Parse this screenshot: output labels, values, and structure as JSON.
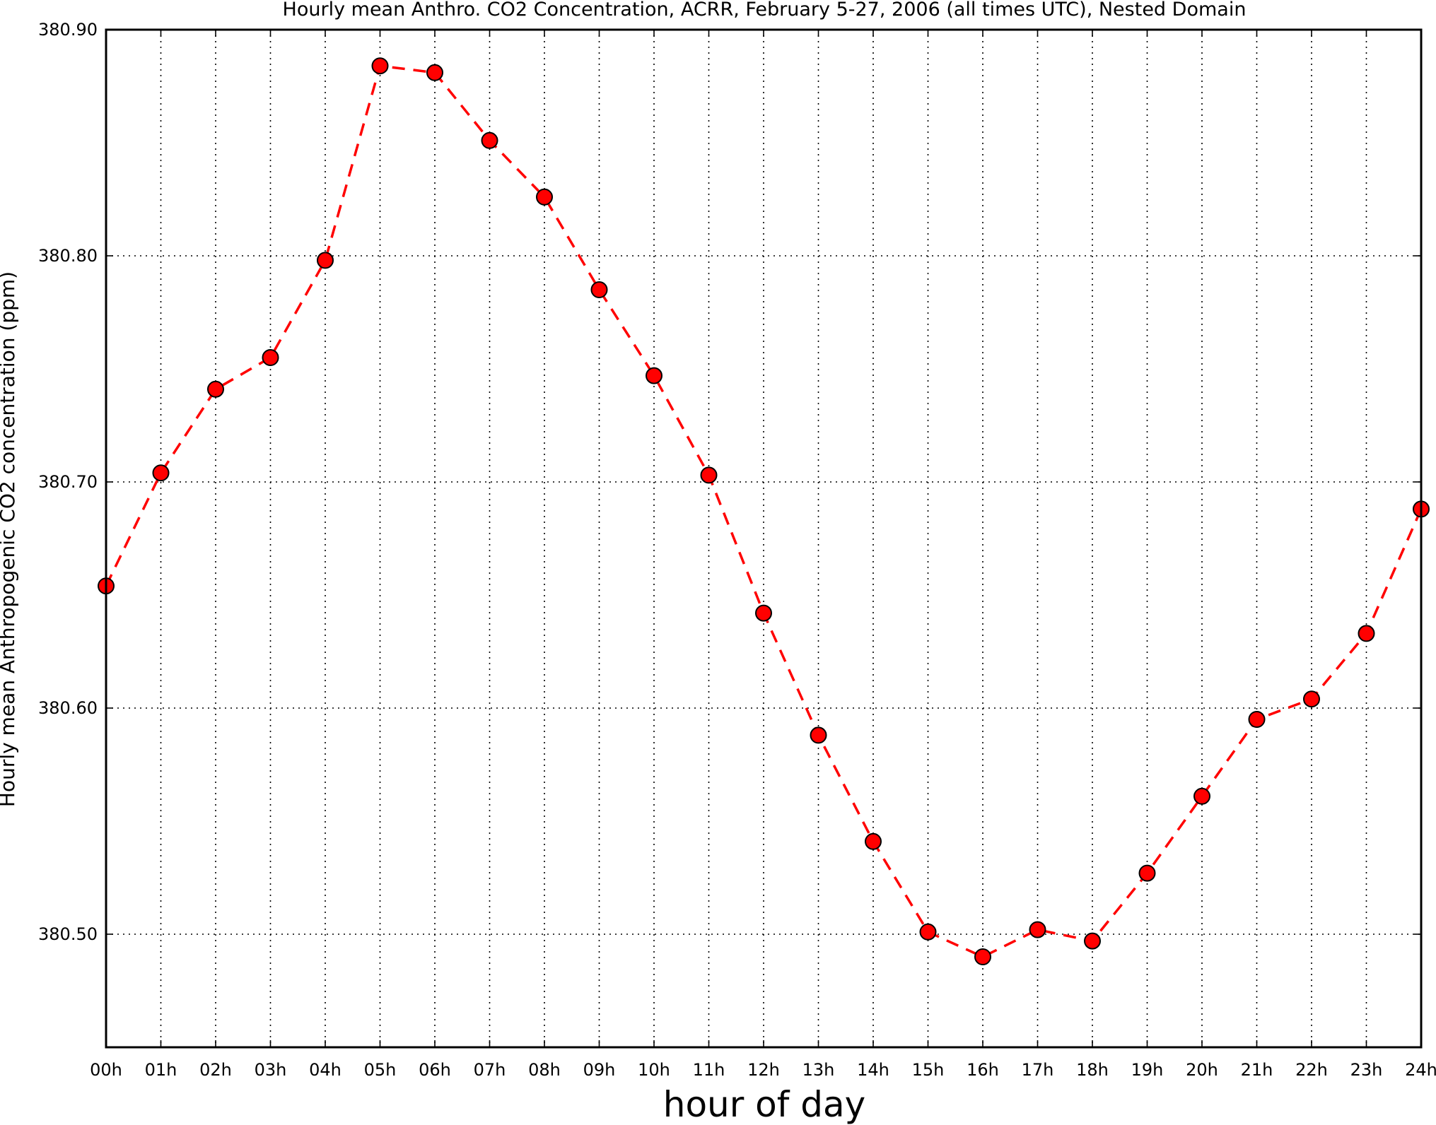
{
  "chart_data": {
    "type": "line",
    "title": "Hourly mean Anthro. CO2 Concentration, ACRR, February 5-27, 2006 (all times UTC), Nested Domain",
    "xlabel": "hour of day",
    "ylabel": "Hourly mean Anthropogenic CO2 concentration (ppm)",
    "categories": [
      "00h",
      "01h",
      "02h",
      "03h",
      "04h",
      "05h",
      "06h",
      "07h",
      "08h",
      "09h",
      "10h",
      "11h",
      "12h",
      "13h",
      "14h",
      "15h",
      "16h",
      "17h",
      "18h",
      "19h",
      "20h",
      "21h",
      "22h",
      "23h",
      "24h"
    ],
    "x": [
      0,
      1,
      2,
      3,
      4,
      5,
      6,
      7,
      8,
      9,
      10,
      11,
      12,
      13,
      14,
      15,
      16,
      17,
      18,
      19,
      20,
      21,
      22,
      23,
      24
    ],
    "series": [
      {
        "values": [
          380.654,
          380.704,
          380.741,
          380.755,
          380.798,
          380.884,
          380.881,
          380.851,
          380.826,
          380.785,
          380.747,
          380.703,
          380.642,
          380.588,
          380.541,
          380.501,
          380.49,
          380.502,
          380.497,
          380.527,
          380.561,
          380.595,
          380.604,
          380.633,
          380.688
        ],
        "color": "#ff0000",
        "line_style": "dashed",
        "marker": "circle"
      }
    ],
    "xlim": [
      0,
      24
    ],
    "ylim": [
      380.45,
      380.9
    ],
    "yticks": [
      "380.50",
      "380.60",
      "380.70",
      "380.80",
      "380.90"
    ],
    "ytick_values": [
      380.5,
      380.6,
      380.7,
      380.8,
      380.9
    ],
    "grid": true,
    "grid_style": "dotted",
    "legend": "none"
  }
}
